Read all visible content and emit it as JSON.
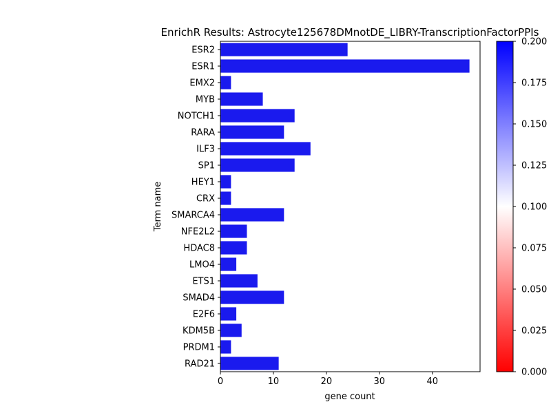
{
  "chart_data": {
    "type": "bar",
    "orientation": "horizontal",
    "title": "EnrichR Results: Astrocyte125678DMnotDE_LIBRY-TranscriptionFactorPPIs",
    "xlabel": "gene count",
    "ylabel": "Term name",
    "xlim": [
      0,
      49
    ],
    "xticks": [
      0,
      10,
      20,
      30,
      40
    ],
    "grid": false,
    "bar_color": "#1a1aee",
    "categories": [
      "ESR2",
      "ESR1",
      "EMX2",
      "MYB",
      "NOTCH1",
      "RARA",
      "ILF3",
      "SP1",
      "HEY1",
      "CRX",
      "SMARCA4",
      "NFE2L2",
      "HDAC8",
      "LMO4",
      "ETS1",
      "SMAD4",
      "E2F6",
      "KDM5B",
      "PRDM1",
      "RAD21"
    ],
    "values": [
      24,
      47,
      2,
      8,
      14,
      12,
      17,
      14,
      2,
      2,
      12,
      5,
      5,
      3,
      7,
      12,
      3,
      4,
      2,
      11
    ],
    "colorbar": {
      "colormap": "bwr_r",
      "range": [
        0.0,
        0.2
      ],
      "ticks": [
        "0.000",
        "0.025",
        "0.050",
        "0.075",
        "0.100",
        "0.125",
        "0.150",
        "0.175",
        "0.200"
      ],
      "colors": [
        "#ff0000",
        "#ffffff",
        "#0000ff"
      ]
    }
  }
}
